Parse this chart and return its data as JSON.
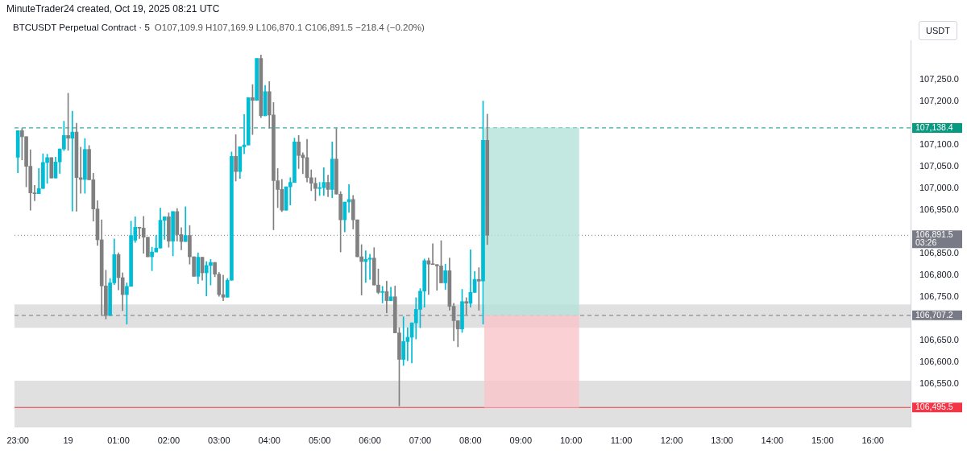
{
  "chart_data": {
    "type": "candlestick",
    "title": "BTCUSDT Perpetual Contract · 5",
    "subtitle": "O107,109.9 H107,169.9 L106,870.1 C106,891.5 −218.4 (−0.20%)",
    "ylabel": "USDT",
    "annotations": [
      "MinuteTrader24 created, Oct 19, 2025 08:21 UTC"
    ],
    "x": [
      "2025-10-18T23:00",
      "2025-10-18T23:05",
      "2025-10-18T23:10",
      "2025-10-18T23:15",
      "2025-10-18T23:20",
      "2025-10-18T23:25",
      "2025-10-18T23:30",
      "2025-10-18T23:35",
      "2025-10-18T23:40",
      "2025-10-18T23:45",
      "2025-10-18T23:50",
      "2025-10-18T23:55",
      "2025-10-19T00:00",
      "2025-10-19T00:05",
      "2025-10-19T00:10",
      "2025-10-19T00:15",
      "2025-10-19T00:20",
      "2025-10-19T00:25",
      "2025-10-19T00:30",
      "2025-10-19T00:35",
      "2025-10-19T00:40",
      "2025-10-19T00:45",
      "2025-10-19T00:50",
      "2025-10-19T00:55",
      "2025-10-19T01:00",
      "2025-10-19T01:05",
      "2025-10-19T01:10",
      "2025-10-19T01:15",
      "2025-10-19T01:20",
      "2025-10-19T01:25",
      "2025-10-19T01:30",
      "2025-10-19T01:35",
      "2025-10-19T01:40",
      "2025-10-19T01:45",
      "2025-10-19T01:50",
      "2025-10-19T01:55",
      "2025-10-19T02:00",
      "2025-10-19T02:05",
      "2025-10-19T02:10",
      "2025-10-19T02:15",
      "2025-10-19T02:20",
      "2025-10-19T02:25",
      "2025-10-19T02:30",
      "2025-10-19T02:35",
      "2025-10-19T02:40",
      "2025-10-19T02:45",
      "2025-10-19T02:50",
      "2025-10-19T02:55",
      "2025-10-19T03:00",
      "2025-10-19T03:05",
      "2025-10-19T03:10",
      "2025-10-19T03:15",
      "2025-10-19T03:20",
      "2025-10-19T03:25",
      "2025-10-19T03:30",
      "2025-10-19T03:35",
      "2025-10-19T03:40",
      "2025-10-19T03:45",
      "2025-10-19T03:50",
      "2025-10-19T03:55",
      "2025-10-19T04:00",
      "2025-10-19T04:05",
      "2025-10-19T04:10",
      "2025-10-19T04:15",
      "2025-10-19T04:20",
      "2025-10-19T04:25",
      "2025-10-19T04:30",
      "2025-10-19T04:35",
      "2025-10-19T04:40",
      "2025-10-19T04:45",
      "2025-10-19T04:50",
      "2025-10-19T04:55",
      "2025-10-19T05:00",
      "2025-10-19T05:05",
      "2025-10-19T05:10",
      "2025-10-19T05:15",
      "2025-10-19T05:20",
      "2025-10-19T05:25",
      "2025-10-19T05:30",
      "2025-10-19T05:35",
      "2025-10-19T05:40",
      "2025-10-19T05:45",
      "2025-10-19T05:50",
      "2025-10-19T05:55",
      "2025-10-19T06:00",
      "2025-10-19T06:05",
      "2025-10-19T06:10",
      "2025-10-19T06:15",
      "2025-10-19T06:20",
      "2025-10-19T06:25",
      "2025-10-19T06:30",
      "2025-10-19T06:35",
      "2025-10-19T06:40",
      "2025-10-19T06:45",
      "2025-10-19T06:50",
      "2025-10-19T06:55",
      "2025-10-19T07:00",
      "2025-10-19T07:05",
      "2025-10-19T07:10",
      "2025-10-19T07:15",
      "2025-10-19T07:20",
      "2025-10-19T07:25",
      "2025-10-19T07:30",
      "2025-10-19T07:35",
      "2025-10-19T07:40",
      "2025-10-19T07:45",
      "2025-10-19T07:50",
      "2025-10-19T07:55",
      "2025-10-19T08:00",
      "2025-10-19T08:05",
      "2025-10-19T08:10",
      "2025-10-19T08:15",
      "2025-10-19T08:20"
    ],
    "ohlc": [
      [
        107071,
        107132,
        107035,
        107132
      ],
      [
        107132,
        107137,
        107065,
        107118
      ],
      [
        107118,
        107118,
        107003,
        107050
      ],
      [
        107050,
        107088,
        106949,
        106989
      ],
      [
        106989,
        107006,
        106971,
        106987
      ],
      [
        106987,
        107045,
        106987,
        106999
      ],
      [
        106999,
        107079,
        106999,
        107059
      ],
      [
        107059,
        107078,
        107011,
        107070
      ],
      [
        107070,
        107070,
        107023,
        107023
      ],
      [
        107023,
        107071,
        107023,
        107060
      ],
      [
        107060,
        107090,
        107034,
        107090
      ],
      [
        107090,
        107154,
        107086,
        107121
      ],
      [
        107121,
        107218,
        107087,
        107115
      ],
      [
        107115,
        107177,
        106947,
        107129
      ],
      [
        107129,
        107149,
        106947,
        107024
      ],
      [
        107024,
        107094,
        106988,
        107020
      ],
      [
        107020,
        107114,
        106988,
        107089
      ],
      [
        107089,
        107098,
        107019,
        107019
      ],
      [
        107019,
        107034,
        106924,
        106952
      ],
      [
        106952,
        106971,
        106868,
        106881
      ],
      [
        106881,
        106927,
        106707,
        106775
      ],
      [
        106775,
        106811,
        106699,
        106707
      ],
      [
        106707,
        106792,
        106707,
        106782
      ],
      [
        106782,
        106883,
        106778,
        106847
      ],
      [
        106847,
        106851,
        106766,
        106794
      ],
      [
        106794,
        106805,
        106718,
        106755
      ],
      [
        106755,
        106782,
        106687,
        106774
      ],
      [
        106774,
        106924,
        106774,
        106891
      ],
      [
        106880,
        106934,
        106875,
        106910
      ],
      [
        106910,
        106910,
        106884,
        106908
      ],
      [
        106908,
        106935,
        106850,
        106887
      ],
      [
        106887,
        106887,
        106842,
        106842
      ],
      [
        106842,
        106864,
        106810,
        106853
      ],
      [
        106853,
        106891,
        106853,
        106862
      ],
      [
        106862,
        106954,
        106862,
        106926
      ],
      [
        106926,
        106934,
        106882,
        106934
      ],
      [
        106934,
        106943,
        106864,
        106878
      ],
      [
        106878,
        106946,
        106844,
        106946
      ],
      [
        106946,
        106953,
        106878,
        106893
      ],
      [
        106893,
        106909,
        106858,
        106877
      ],
      [
        106877,
        106957,
        106877,
        106891
      ],
      [
        106891,
        106914,
        106825,
        106842
      ],
      [
        106842,
        106842,
        106797,
        106797
      ],
      [
        106797,
        106851,
        106780,
        106841
      ],
      [
        106841,
        106841,
        106788,
        106805
      ],
      [
        106805,
        106831,
        106752,
        106822
      ],
      [
        106822,
        106836,
        106777,
        106829
      ],
      [
        106829,
        106829,
        106796,
        106802
      ],
      [
        106802,
        106806,
        106751,
        106755
      ],
      [
        106755,
        106800,
        106741,
        106749
      ],
      [
        106749,
        106792,
        106749,
        106788
      ],
      [
        106788,
        107083,
        106788,
        107073
      ],
      [
        107073,
        107123,
        107016,
        107038
      ],
      [
        107038,
        107095,
        107022,
        107095
      ],
      [
        107095,
        107169,
        107079,
        107099
      ],
      [
        107099,
        107208,
        107099,
        107208
      ],
      [
        107208,
        107238,
        107123,
        107202
      ],
      [
        107202,
        107298,
        107202,
        107298
      ],
      [
        107298,
        107306,
        107162,
        107166
      ],
      [
        107166,
        107236,
        107166,
        107222
      ],
      [
        107222,
        107245,
        107138,
        107168
      ],
      [
        107168,
        107197,
        106904,
        107017
      ],
      [
        107017,
        107045,
        106955,
        106997
      ],
      [
        106997,
        107020,
        106946,
        106949
      ],
      [
        106949,
        107003,
        106949,
        107003
      ],
      [
        107003,
        107024,
        106961,
        107013
      ],
      [
        107013,
        107115,
        107013,
        107106
      ],
      [
        107106,
        107121,
        107045,
        107075
      ],
      [
        107076,
        107081,
        107033,
        107070
      ],
      [
        107070,
        107112,
        107014,
        107024
      ],
      [
        107024,
        107042,
        106994,
        107011
      ],
      [
        107011,
        107024,
        106971,
        106999
      ],
      [
        106999,
        107013,
        106983,
        107001
      ],
      [
        107001,
        107047,
        106983,
        107013
      ],
      [
        107013,
        107030,
        106980,
        106997
      ],
      [
        106997,
        107106,
        106978,
        107067
      ],
      [
        107067,
        107137,
        106986,
        106986
      ],
      [
        106986,
        106992,
        106853,
        106927
      ],
      [
        106927,
        106968,
        106899,
        106968
      ],
      [
        106968,
        107008,
        106944,
        106974
      ],
      [
        106974,
        106983,
        106906,
        106927
      ],
      [
        106927,
        106927,
        106842,
        106842
      ],
      [
        106842,
        106870,
        106754,
        106831
      ],
      [
        106831,
        106856,
        106783,
        106836
      ],
      [
        106836,
        106848,
        106790,
        106839
      ],
      [
        106839,
        106863,
        106777,
        106777
      ],
      [
        106777,
        106814,
        106757,
        106760
      ],
      [
        106760,
        106774,
        106736,
        106762
      ],
      [
        106762,
        106786,
        106713,
        106741
      ],
      [
        106741,
        106772,
        106741,
        106750
      ],
      [
        106750,
        106775,
        106667,
        106667
      ],
      [
        106667,
        106679,
        106499,
        106606
      ],
      [
        106606,
        106704,
        106592,
        106647
      ],
      [
        106647,
        106679,
        106603,
        106657
      ],
      [
        106657,
        106690,
        106598,
        106690
      ],
      [
        106690,
        106748,
        106653,
        106721
      ],
      [
        106721,
        106769,
        106679,
        106763
      ],
      [
        106763,
        106837,
        106726,
        106833
      ],
      [
        106833,
        106839,
        106755,
        106825
      ],
      [
        106825,
        106872,
        106824,
        106824
      ],
      [
        106824,
        106824,
        106765,
        106821
      ],
      [
        106821,
        106879,
        106782,
        106782
      ],
      [
        106782,
        106825,
        106767,
        106810
      ],
      [
        106810,
        106839,
        106719,
        106728
      ],
      [
        106728,
        106735,
        106649,
        106695
      ],
      [
        106695,
        106695,
        106635,
        106676
      ],
      [
        106676,
        106767,
        106668,
        106739
      ],
      [
        106739,
        106748,
        106709,
        106735
      ],
      [
        106735,
        106858,
        106726,
        106760
      ],
      [
        106760,
        106808,
        106760,
        106790
      ],
      [
        106790,
        106817,
        106719,
        106786
      ],
      [
        106786,
        107200,
        106687,
        107109.9
      ],
      [
        107109.9,
        107169.9,
        106870.1,
        106891.5
      ]
    ],
    "colors": [
      "#00bcd4",
      "#808080",
      "#808080",
      "#808080",
      "#808080",
      "#00bcd4",
      "#00bcd4",
      "#00bcd4",
      "#808080",
      "#00bcd4",
      "#00bcd4",
      "#00bcd4",
      "#808080",
      "#00bcd4",
      "#808080",
      "#808080",
      "#00bcd4",
      "#808080",
      "#808080",
      "#808080",
      "#808080",
      "#808080",
      "#00bcd4",
      "#00bcd4",
      "#808080",
      "#808080",
      "#00bcd4",
      "#00bcd4",
      "#00bcd4",
      "#808080",
      "#808080",
      "#808080",
      "#00bcd4",
      "#00bcd4",
      "#00bcd4",
      "#00bcd4",
      "#808080",
      "#00bcd4",
      "#808080",
      "#808080",
      "#00bcd4",
      "#808080",
      "#808080",
      "#00bcd4",
      "#808080",
      "#00bcd4",
      "#00bcd4",
      "#808080",
      "#808080",
      "#808080",
      "#00bcd4",
      "#00bcd4",
      "#808080",
      "#00bcd4",
      "#00bcd4",
      "#00bcd4",
      "#808080",
      "#00bcd4",
      "#808080",
      "#00bcd4",
      "#808080",
      "#808080",
      "#808080",
      "#808080",
      "#00bcd4",
      "#00bcd4",
      "#00bcd4",
      "#808080",
      "#808080",
      "#808080",
      "#808080",
      "#808080",
      "#00bcd4",
      "#00bcd4",
      "#808080",
      "#00bcd4",
      "#808080",
      "#808080",
      "#00bcd4",
      "#00bcd4",
      "#808080",
      "#808080",
      "#808080",
      "#00bcd4",
      "#00bcd4",
      "#808080",
      "#808080",
      "#00bcd4",
      "#808080",
      "#00bcd4",
      "#808080",
      "#808080",
      "#00bcd4",
      "#00bcd4",
      "#00bcd4",
      "#00bcd4",
      "#00bcd4",
      "#00bcd4",
      "#808080",
      "#808080",
      "#808080",
      "#808080",
      "#00bcd4",
      "#808080",
      "#808080",
      "#808080",
      "#00bcd4",
      "#808080",
      "#00bcd4",
      "#00bcd4",
      "#808080",
      "#00bcd4",
      "#808080"
    ],
    "series": [
      {
        "type": "bar",
        "x": [
          "2025-10-19T09:13",
          "2025-10-19T09:13"
        ],
        "base": [
          106707.2,
          106495.5
        ],
        "values": [
          431.2,
          211.7
        ],
        "colors": [
          "#b3e2d9",
          "#f9c4c9"
        ]
      }
    ],
    "bands": [
      {
        "axis": "y",
        "from": 106678.5,
        "to": 106732.4,
        "color": "#e0e0e0"
      },
      {
        "axis": "y",
        "from": 106450,
        "to": 106557,
        "color": "#e0e0e0"
      }
    ],
    "ref_lines": [
      {
        "axis": "y",
        "value": 107138.4,
        "label": "107,138.4",
        "color": "#089981",
        "line_style": "dashed"
      },
      {
        "axis": "y",
        "value": 106707.2,
        "label": "106,707.2",
        "color": "#787b86",
        "line_style": "dashed"
      },
      {
        "axis": "y",
        "value": 106891.5,
        "label": "106,891.5\n03:26",
        "color": "#787b86",
        "line_style": "dotted"
      },
      {
        "axis": "y",
        "value": 106495.5,
        "label": "106,495.5",
        "color": "#f23645",
        "line_style": "solid"
      }
    ],
    "xlim": [
      "2025-10-18T22:56",
      "2025-10-19T16:45"
    ],
    "xticks": [
      {
        "value": "2025-10-18T23:00",
        "label": "23:00"
      },
      {
        "value": "2025-10-19T00:00",
        "label": "19"
      },
      {
        "value": "2025-10-19T01:00",
        "label": "01:00"
      },
      {
        "value": "2025-10-19T02:00",
        "label": "02:00"
      },
      {
        "value": "2025-10-19T03:00",
        "label": "03:00"
      },
      {
        "value": "2025-10-19T04:00",
        "label": "04:00"
      },
      {
        "value": "2025-10-19T05:00",
        "label": "05:00"
      },
      {
        "value": "2025-10-19T06:00",
        "label": "06:00"
      },
      {
        "value": "2025-10-19T07:00",
        "label": "07:00"
      },
      {
        "value": "2025-10-19T08:00",
        "label": "08:00"
      },
      {
        "value": "2025-10-19T09:00",
        "label": "09:00"
      },
      {
        "value": "2025-10-19T10:00",
        "label": "10:00"
      },
      {
        "value": "2025-10-19T11:00",
        "label": "11:00"
      },
      {
        "value": "2025-10-19T12:00",
        "label": "12:00"
      },
      {
        "value": "2025-10-19T13:00",
        "label": "13:00"
      },
      {
        "value": "2025-10-19T14:00",
        "label": "14:00"
      },
      {
        "value": "2025-10-19T15:00",
        "label": "15:00"
      },
      {
        "value": "2025-10-19T16:00",
        "label": "16:00"
      }
    ],
    "ylim": [
      106450,
      107340
    ],
    "yticks": [
      {
        "value": 106550,
        "label": "106,550.0"
      },
      {
        "value": 106600,
        "label": "106,600.0"
      },
      {
        "value": 106650,
        "label": "106,650.0"
      },
      {
        "value": 106750,
        "label": "106,750.0"
      },
      {
        "value": 106800,
        "label": "106,800.0"
      },
      {
        "value": 106850,
        "label": "106,850.0"
      },
      {
        "value": 106950,
        "label": "106,950.0"
      },
      {
        "value": 107000,
        "label": "107,000.0"
      },
      {
        "value": 107050,
        "label": "107,050.0"
      },
      {
        "value": 107100,
        "label": "107,100.0"
      },
      {
        "value": 107200,
        "label": "107,200.0"
      },
      {
        "value": 107250,
        "label": "107,250.0"
      }
    ],
    "grid": false
  }
}
